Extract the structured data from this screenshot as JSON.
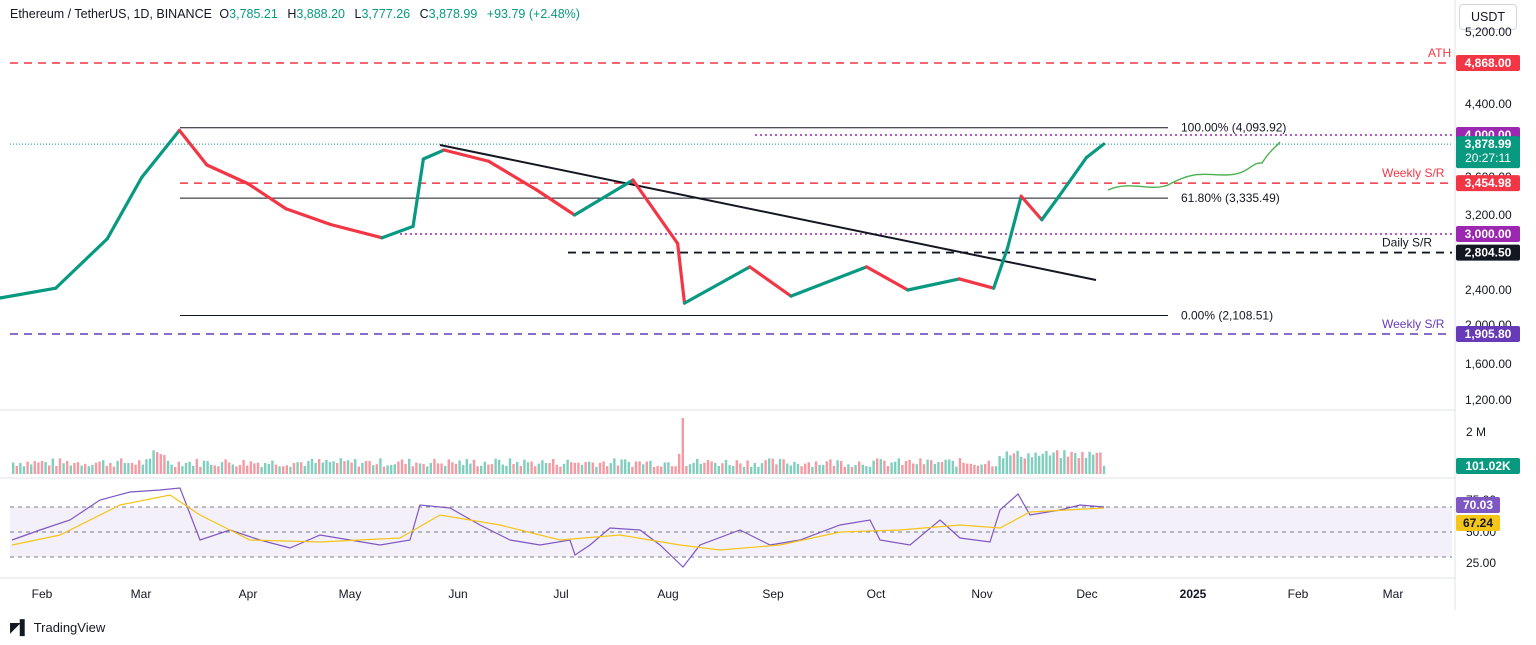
{
  "header": {
    "symbol": "Ethereum / TetherUS, 1D, BINANCE",
    "o_label": "O",
    "o_value": "3,785.21",
    "h_label": "H",
    "h_value": "3,888.20",
    "l_label": "L",
    "l_value": "3,777.26",
    "c_label": "C",
    "c_value": "3,878.99",
    "change": "+93.79 (+2.48%)"
  },
  "unit_button": "USDT",
  "brand": "TradingView",
  "colors": {
    "up": "#089981",
    "down": "#f23645",
    "resistance": "#f23645",
    "purple": "#9c27b0",
    "support_blue": "#673ab7",
    "rsi_line": "#7e57c2",
    "rsi_ma": "#f5c518",
    "forecast": "#4caf50"
  },
  "chart_data": {
    "type": "line",
    "title": "Ethereum / TetherUS, 1D, BINANCE",
    "price_axis": {
      "ticks": [
        "5,200.00",
        "4,400.00",
        "3,600.00",
        "3,200.00",
        "2,400.00",
        "2,000.00",
        "1,600.00",
        "1,200.00"
      ]
    },
    "volume_axis": {
      "ticks": [
        "2 M"
      ]
    },
    "rsi_axis": {
      "ticks": [
        "75.00",
        "50.00",
        "25.00"
      ]
    },
    "time_axis": [
      "Feb",
      "Mar",
      "Apr",
      "May",
      "Jun",
      "Jul",
      "Aug",
      "Sep",
      "Oct",
      "Nov",
      "Dec",
      "2025",
      "Feb",
      "Mar"
    ],
    "close_path": {
      "x": [
        "2024-01-01",
        "2024-01-20",
        "2024-02-05",
        "2024-02-20",
        "2024-03-01",
        "2024-03-12",
        "2024-03-20",
        "2024-04-01",
        "2024-04-12",
        "2024-04-25",
        "2024-05-10",
        "2024-05-19",
        "2024-05-22",
        "2024-05-28",
        "2024-06-10",
        "2024-06-24",
        "2024-07-05",
        "2024-07-22",
        "2024-08-04",
        "2024-08-06",
        "2024-08-25",
        "2024-09-06",
        "2024-09-28",
        "2024-10-10",
        "2024-10-25",
        "2024-11-04",
        "2024-11-08",
        "2024-11-12",
        "2024-11-18",
        "2024-11-23",
        "2024-12-01",
        "2024-12-06"
      ],
      "y": [
        2290,
        2310,
        2420,
        2950,
        3500,
        4060,
        3600,
        3450,
        3250,
        3100,
        2960,
        3080,
        3680,
        3800,
        3650,
        3400,
        3200,
        3480,
        2900,
        2250,
        2650,
        2330,
        2650,
        2400,
        2520,
        2420,
        2850,
        3350,
        3150,
        3350,
        3700,
        3879
      ]
    },
    "levels": [
      {
        "label": "ATH",
        "value": "4,868.00",
        "price": 4868,
        "style": "dashed",
        "color": "#f23645"
      },
      {
        "label": "",
        "value": "4,000.00",
        "price": 4000,
        "style": "dotted",
        "color": "#9c27b0"
      },
      {
        "label": "Weekly S/R",
        "value": "3,454.98",
        "price": 3454.98,
        "style": "dashed",
        "color": "#f23645"
      },
      {
        "label": "",
        "value": "3,000.00",
        "price": 3000,
        "style": "dotted",
        "color": "#9c27b0"
      },
      {
        "label": "Daily S/R",
        "value": "2,804.50",
        "price": 2804.5,
        "style": "dashed",
        "color": "#131722"
      },
      {
        "label": "Weekly S/R",
        "value": "1,905.80",
        "price": 1905.8,
        "style": "dashed",
        "color": "#673ab7"
      }
    ],
    "fibonacci": [
      {
        "label": "100.00% (4,093.92)",
        "price": 4093.92
      },
      {
        "label": "61.80% (3,335.49)",
        "price": 3335.49
      },
      {
        "label": "0.00% (2,108.51)",
        "price": 2108.51
      }
    ],
    "last_price": {
      "value": "3,878.99",
      "countdown": "20:27:11"
    },
    "volume_last": "101.02K",
    "rsi": {
      "value": "70.03",
      "ma": "67.24",
      "overbought": 70,
      "oversold": 30
    }
  }
}
